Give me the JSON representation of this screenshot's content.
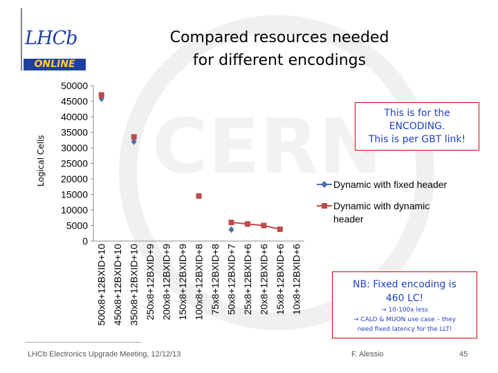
{
  "slide": {
    "title_line1": "Compared resources needed",
    "title_line2": "for different encodings",
    "logo_text": "LHCb",
    "logo_online": "ONLINE",
    "note_top_line1": "This is for the",
    "note_top_line2": "ENCODING.",
    "note_top_line3": "This is per GBT link!",
    "note_bottom_line1": "NB: Fixed encoding is",
    "note_bottom_line2": "460 LC!",
    "note_bottom_line3": "→ 10-100x less",
    "note_bottom_line4": "→ CALO & MUON use case – they",
    "note_bottom_line5": "need fixed latency for the LLT!",
    "footer_left": "LHCb Electronics Upgrade Meeting, 12/12/13",
    "footer_mid": "F. Alessio",
    "footer_right": "45",
    "watermark_text": "CERN"
  },
  "colors": {
    "series_fixed": "#4f6fa8",
    "series_dynamic": "#be4b48",
    "note_border": "#d00000",
    "note_text": "#1f3fbf",
    "logo_blue": "#1f3f9f"
  },
  "chart_data": {
    "type": "line",
    "ylabel": "Logical Cells",
    "xlabel": "",
    "ylim": [
      0,
      50000
    ],
    "yticks": [
      0,
      5000,
      10000,
      15000,
      20000,
      25000,
      30000,
      35000,
      40000,
      45000,
      50000
    ],
    "grid": false,
    "legend_position": "right",
    "categories": [
      "500x8+12BXID+10",
      "450x8+12BXID+10",
      "350x8+12BXID+10",
      "250x8+12BXID+9",
      "200x8+12BXID+9",
      "150x8+12BXID+9",
      "100x8+12BXID+8",
      "75x8+12BXID+8",
      "50x8+12BXID+7",
      "25x8+12BXID+6",
      "20x8+12BXID+6",
      "15x8+12BXID+6",
      "10x8+12BXID+6"
    ],
    "series": [
      {
        "name": "Dynamic with fixed header",
        "marker": "diamond",
        "values": [
          45800,
          null,
          32000,
          null,
          null,
          null,
          null,
          null,
          3700,
          null,
          null,
          null,
          null
        ]
      },
      {
        "name": "Dynamic with dynamic header",
        "marker": "square",
        "values": [
          47000,
          null,
          33500,
          null,
          null,
          null,
          14500,
          null,
          6000,
          5500,
          5000,
          3800,
          null
        ]
      }
    ]
  }
}
